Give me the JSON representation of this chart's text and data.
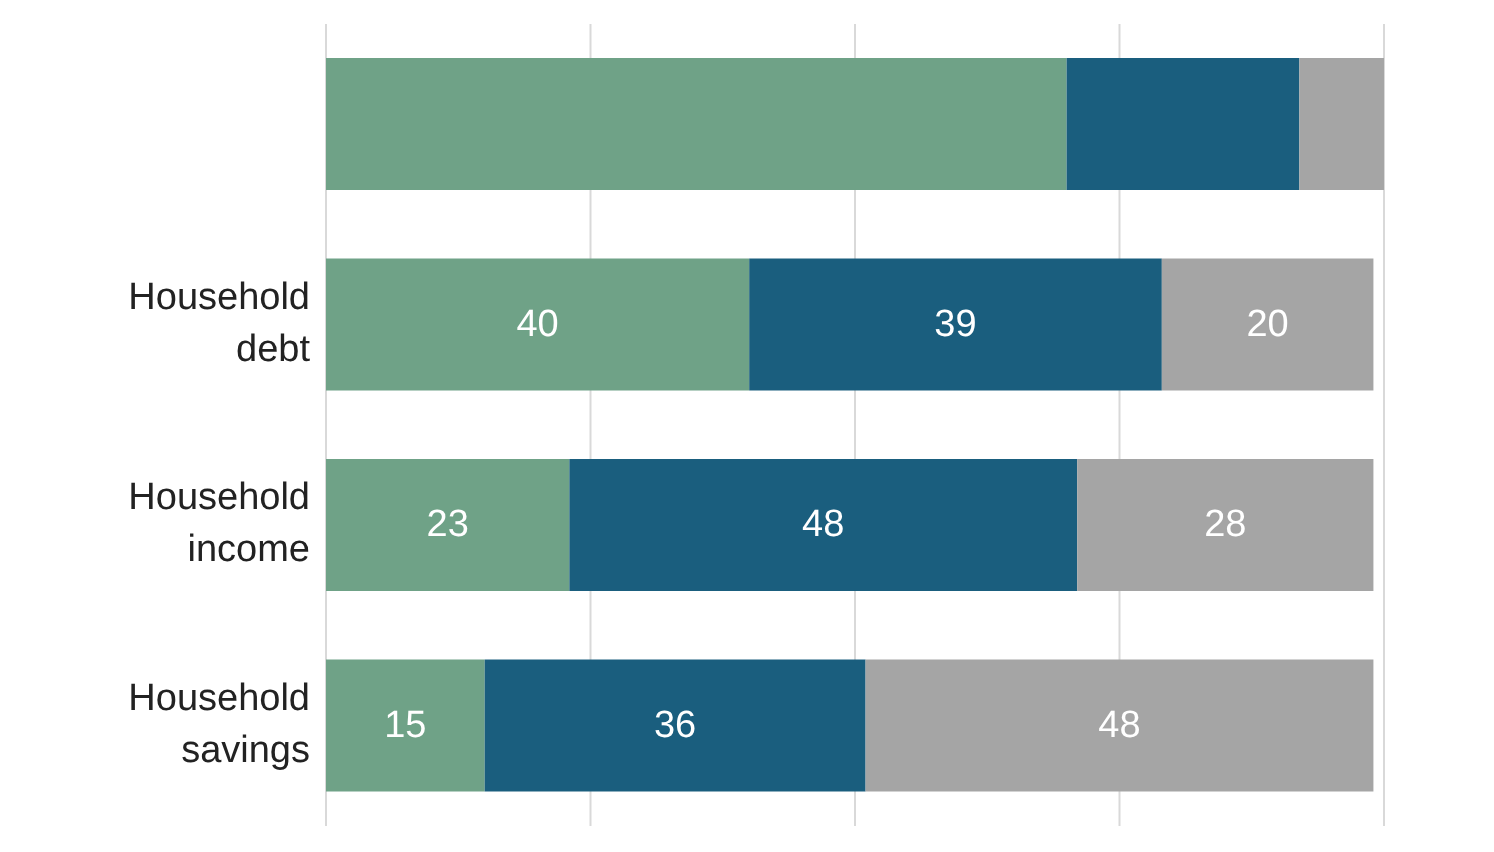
{
  "chart_data": {
    "type": "bar",
    "orientation": "horizontal",
    "stacked": true,
    "categories": [
      null,
      "Household debt",
      "Household income",
      "Household savings"
    ],
    "series": [
      {
        "color": "#6fa287",
        "values": [
          70,
          40,
          23,
          15
        ],
        "value_labels": [
          null,
          "40",
          "23",
          "15"
        ]
      },
      {
        "color": "#1a5e7e",
        "values": [
          22,
          39,
          48,
          36
        ],
        "value_labels": [
          null,
          "39",
          "48",
          "36"
        ]
      },
      {
        "color": "#a5a5a5",
        "values": [
          8,
          20,
          28,
          48
        ],
        "value_labels": [
          null,
          "20",
          "28",
          "48"
        ]
      }
    ],
    "xlim": [
      0,
      100
    ],
    "grid": "x",
    "tick_labels": "y"
  }
}
